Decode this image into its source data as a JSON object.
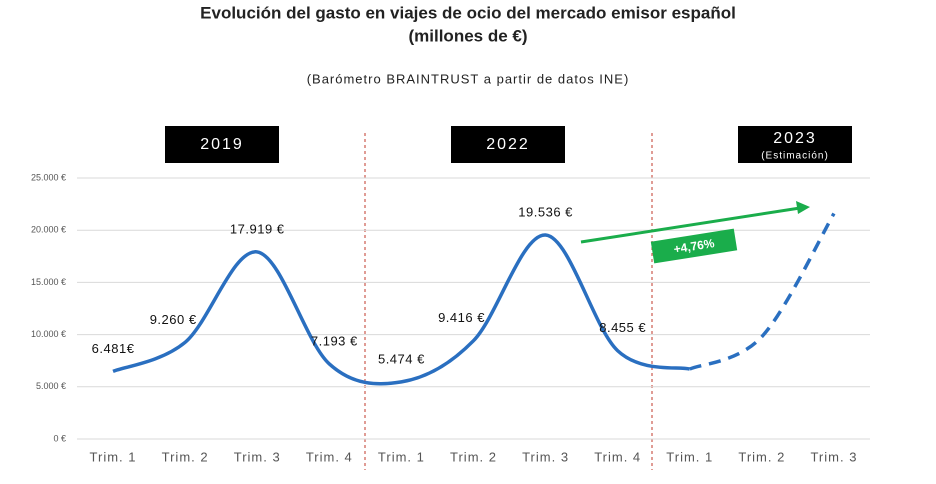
{
  "chart_data": {
    "type": "line",
    "title": "Evolución del gasto en viajes de ocio del mercado emisor español",
    "title_line2": "(millones de €)",
    "subtitle": "(Barómetro BRAINTRUST a partir de datos INE)",
    "periods": [
      {
        "label": "2019"
      },
      {
        "label": "2022"
      },
      {
        "label": "2023",
        "note": "(Estimación)"
      }
    ],
    "categories": [
      "Trim. 1",
      "Trim. 2",
      "Trim. 3",
      "Trim. 4",
      "Trim. 1",
      "Trim. 2",
      "Trim. 3",
      "Trim. 4",
      "Trim. 1",
      "Trim. 2",
      "Trim. 3"
    ],
    "values": [
      6481,
      9260,
      17919,
      7193,
      5474,
      9416,
      19536,
      8455,
      6700,
      9800,
      21600
    ],
    "value_labels": [
      "6.481€",
      "9.260 €",
      "17.919 €",
      "7.193 €",
      "5.474 €",
      "9.416 €",
      "19.536 €",
      "8.455 €",
      null,
      null,
      null
    ],
    "color": "#2a6fc0",
    "dashed_from": 8,
    "annotation": "+4,76%",
    "annotation_color": "#1aad4b",
    "ylim": [
      0,
      25000
    ],
    "yticks": [
      {
        "value": 0,
        "label": "0 €"
      },
      {
        "value": 5000,
        "label": "5.000 €"
      },
      {
        "value": 10000,
        "label": "10.000 €"
      },
      {
        "value": 15000,
        "label": "15.000 €"
      },
      {
        "value": 20000,
        "label": "20.000 €"
      },
      {
        "value": 25000,
        "label": "25.000 €"
      }
    ],
    "grid": true
  }
}
